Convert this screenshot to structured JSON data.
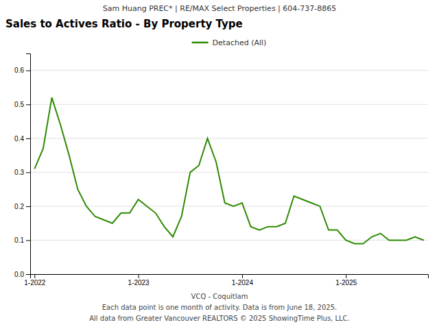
{
  "chart_data": {
    "type": "line",
    "title": "Sales to Actives Ratio - By Property Type",
    "subtitle": "Sam Huang PREC* | RE/MAX Select Properties | 604-737-8865",
    "annotations": [
      "VCQ - Coquitlam",
      "Each data point is one month of activity. Data is from June 18, 2025.",
      "All data from Greater Vancouver REALTORS © 2025 ShowingTime Plus, LLC."
    ],
    "categories": [
      "1-2022",
      null,
      null,
      null,
      null,
      null,
      null,
      null,
      null,
      null,
      null,
      null,
      "1-2023",
      null,
      null,
      null,
      null,
      null,
      null,
      null,
      null,
      null,
      null,
      null,
      "1-2024",
      null,
      null,
      null,
      null,
      null,
      null,
      null,
      null,
      null,
      null,
      null,
      "1-2025",
      null,
      null,
      null,
      null,
      null,
      null,
      null,
      null,
      null
    ],
    "series": [
      {
        "name": "Detached (All)",
        "color": "#2d8a00",
        "values": [
          0.31,
          0.37,
          0.52,
          0.44,
          0.35,
          0.25,
          0.2,
          0.17,
          0.16,
          0.15,
          0.18,
          0.18,
          0.22,
          0.2,
          0.18,
          0.14,
          0.11,
          0.17,
          0.3,
          0.32,
          0.4,
          0.33,
          0.21,
          0.2,
          0.21,
          0.14,
          0.13,
          0.14,
          0.14,
          0.15,
          0.23,
          0.22,
          0.21,
          0.2,
          0.13,
          0.13,
          0.1,
          0.09,
          0.09,
          0.11,
          0.12,
          0.1,
          0.1,
          0.1,
          0.11,
          0.1
        ]
      }
    ],
    "ylim": [
      0.0,
      0.65
    ],
    "yticks": [
      {
        "value": 0.0,
        "label": "0.0"
      },
      0.1,
      0.2,
      0.3,
      0.4,
      0.5,
      0.6
    ],
    "grid": true,
    "legend": "top"
  }
}
